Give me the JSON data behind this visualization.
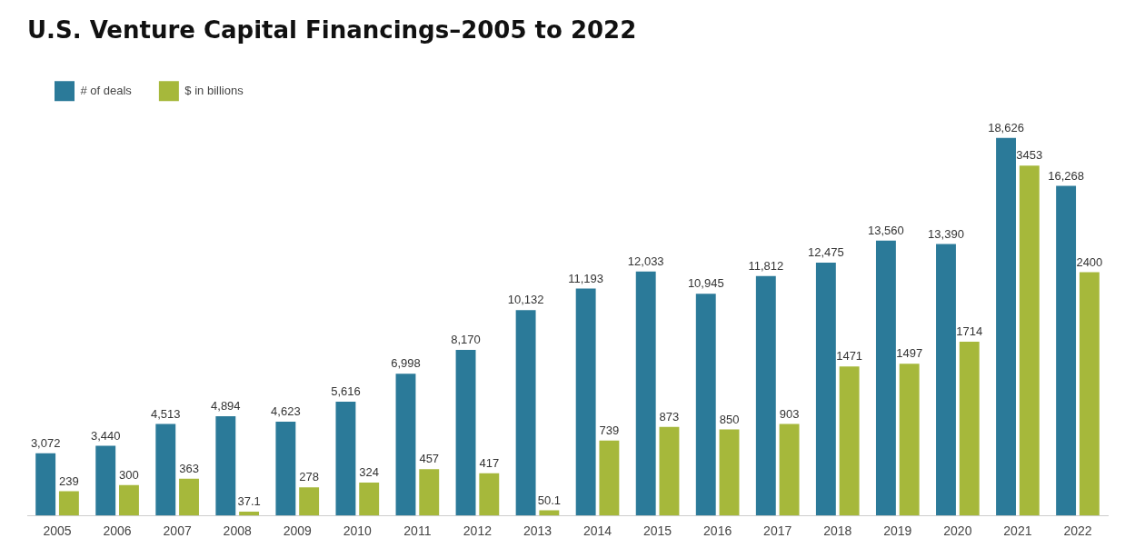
{
  "chart_data": {
    "type": "bar",
    "title": "U.S. Venture Capital Financings–2005 to 2022",
    "categories": [
      "2005",
      "2006",
      "2007",
      "2008",
      "2009",
      "2010",
      "2011",
      "2012",
      "2013",
      "2014",
      "2015",
      "2016",
      "2017",
      "2018",
      "2019",
      "2020",
      "2021",
      "2022"
    ],
    "series": [
      {
        "name": "# of deals",
        "color": "#2b7a99",
        "values": [
          3072,
          3440,
          4513,
          4894,
          4623,
          5616,
          6998,
          8170,
          10132,
          11193,
          12033,
          10945,
          11812,
          12475,
          13560,
          13390,
          18626,
          16268
        ],
        "value_labels": [
          "3,072",
          "3,440",
          "4,513",
          "4,894",
          "4,623",
          "5,616",
          "6,998",
          "8,170",
          "10,132",
          "11,193",
          "12,033",
          "10,945",
          "11,812",
          "12,475",
          "13,560",
          "13,390",
          "18,626",
          "16,268"
        ]
      },
      {
        "name": "$ in billions",
        "color": "#a6b83b",
        "axis": "y2",
        "values": [
          239,
          300,
          363,
          37.1,
          278,
          324,
          457,
          417,
          50.1,
          739,
          873,
          850,
          903,
          1471,
          1497,
          1714,
          3453,
          2400
        ],
        "value_labels": [
          "239",
          "300",
          "363",
          "37.1",
          "278",
          "324",
          "457",
          "417",
          "50.1",
          "739",
          "873",
          "850",
          "903",
          "1471",
          "1497",
          "1714",
          "3453",
          "2400"
        ]
      }
    ],
    "legend": "top left",
    "grid": false
  }
}
